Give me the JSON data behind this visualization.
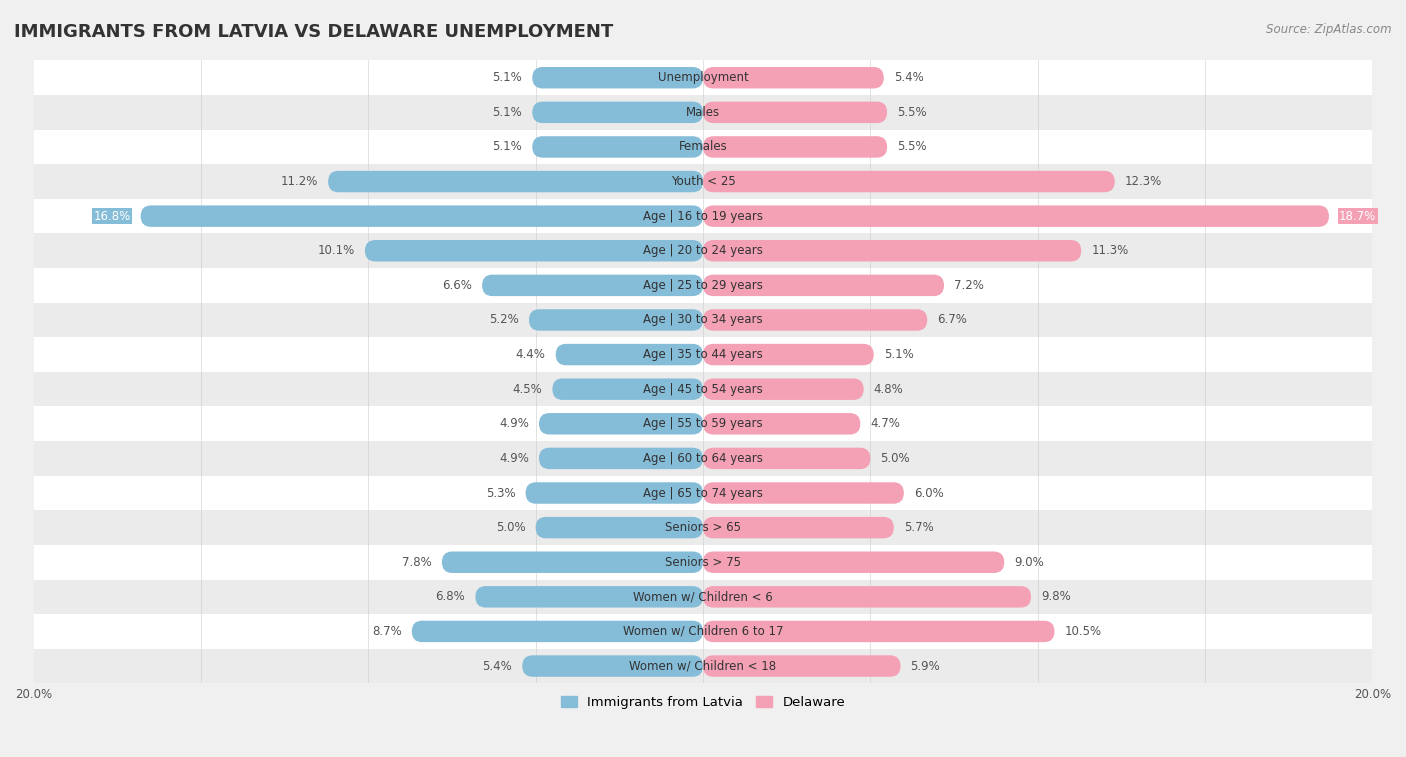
{
  "title": "IMMIGRANTS FROM LATVIA VS DELAWARE UNEMPLOYMENT",
  "source": "Source: ZipAtlas.com",
  "categories": [
    "Unemployment",
    "Males",
    "Females",
    "Youth < 25",
    "Age | 16 to 19 years",
    "Age | 20 to 24 years",
    "Age | 25 to 29 years",
    "Age | 30 to 34 years",
    "Age | 35 to 44 years",
    "Age | 45 to 54 years",
    "Age | 55 to 59 years",
    "Age | 60 to 64 years",
    "Age | 65 to 74 years",
    "Seniors > 65",
    "Seniors > 75",
    "Women w/ Children < 6",
    "Women w/ Children 6 to 17",
    "Women w/ Children < 18"
  ],
  "latvia_values": [
    5.1,
    5.1,
    5.1,
    11.2,
    16.8,
    10.1,
    6.6,
    5.2,
    4.4,
    4.5,
    4.9,
    4.9,
    5.3,
    5.0,
    7.8,
    6.8,
    8.7,
    5.4
  ],
  "delaware_values": [
    5.4,
    5.5,
    5.5,
    12.3,
    18.7,
    11.3,
    7.2,
    6.7,
    5.1,
    4.8,
    4.7,
    5.0,
    6.0,
    5.7,
    9.0,
    9.8,
    10.5,
    5.9
  ],
  "latvia_color": "#85bcd8",
  "delaware_color": "#f4a0b5",
  "row_colors": [
    "#ffffff",
    "#ebebeb"
  ],
  "background_color": "#f0f0f0",
  "xlim": 20.0,
  "bar_height": 0.62,
  "legend_latvia": "Immigrants from Latvia",
  "legend_delaware": "Delaware",
  "title_fontsize": 13,
  "label_fontsize": 8.5,
  "value_fontsize": 8.5
}
